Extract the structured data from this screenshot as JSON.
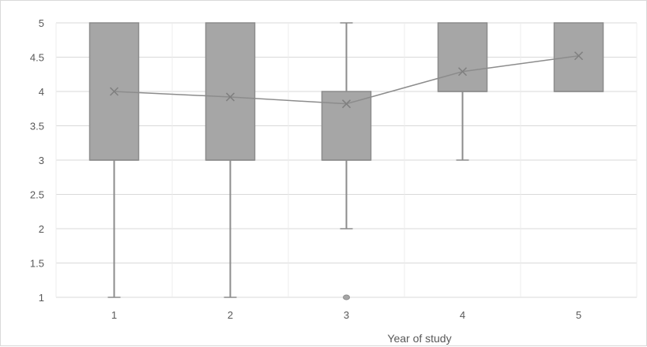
{
  "chart_data": {
    "type": "box",
    "title": "",
    "xlabel": "Year of study",
    "ylabel": "",
    "ylim": [
      1,
      5
    ],
    "yticks": [
      "1",
      "1.5",
      "2",
      "2.5",
      "3",
      "3.5",
      "4",
      "4.5",
      "5"
    ],
    "grid": true,
    "legend": "none",
    "categories": [
      "1",
      "2",
      "3",
      "4",
      "5"
    ],
    "boxes": [
      {
        "category": "1",
        "min": 1,
        "q1": 3,
        "median": 3,
        "q3": 5,
        "max": 5,
        "mean": 4.0,
        "outliers": []
      },
      {
        "category": "2",
        "min": 1,
        "q1": 3,
        "median": 3,
        "q3": 5,
        "max": 5,
        "mean": 3.92,
        "outliers": []
      },
      {
        "category": "3",
        "min": 2,
        "q1": 3,
        "median": 3,
        "q3": 4,
        "max": 5,
        "mean": 3.82,
        "outliers": [
          1
        ]
      },
      {
        "category": "4",
        "min": 3,
        "q1": 4,
        "median": 4,
        "q3": 5,
        "max": 5,
        "mean": 4.29,
        "outliers": []
      },
      {
        "category": "5",
        "min": 4,
        "q1": 4,
        "median": 4,
        "q3": 5,
        "max": 5,
        "mean": 4.52,
        "outliers": []
      }
    ],
    "colors": {
      "box_fill": "#a6a6a6",
      "box_stroke": "#8c8c8c",
      "whisker": "#8c8c8c",
      "mean_line": "#8c8c8c",
      "grid": "#d9d9d9"
    }
  }
}
